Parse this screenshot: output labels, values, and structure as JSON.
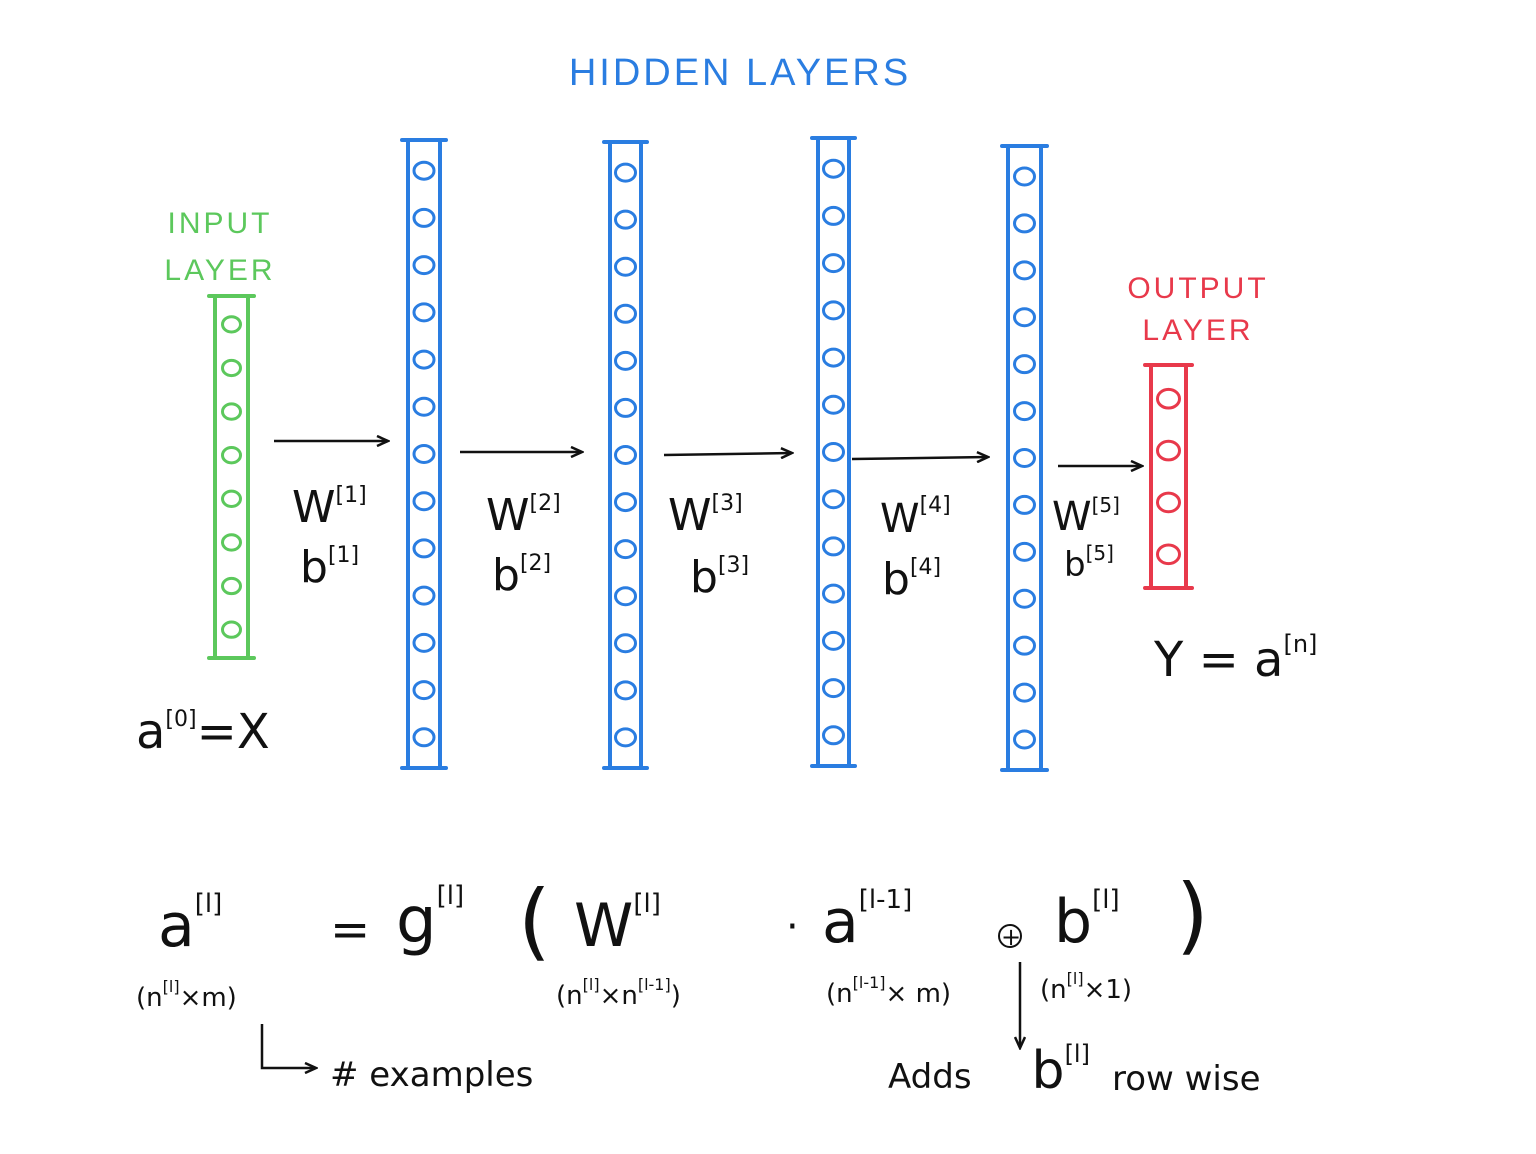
{
  "colors": {
    "hidden": "#2a7de1",
    "input": "#5cc85c",
    "output": "#e8394b",
    "ink": "#111111"
  },
  "labels": {
    "hidden_title": "HIDDEN LAYERS",
    "input_title_1": "INPUT",
    "input_title_2": "LAYER",
    "output_title_1": "OUTPUT",
    "output_title_2": "LAYER"
  },
  "layers": {
    "input_neurons": 8,
    "hidden_neurons": 13,
    "output_neurons": 4
  },
  "params": [
    {
      "w": "W",
      "w_sup": "[1]",
      "b": "b",
      "b_sup": "[1]"
    },
    {
      "w": "W",
      "w_sup": "[2]",
      "b": "b",
      "b_sup": "[2]"
    },
    {
      "w": "W",
      "w_sup": "[3]",
      "b": "b",
      "b_sup": "[3]"
    },
    {
      "w": "W",
      "w_sup": "[4]",
      "b": "b",
      "b_sup": "[4]"
    },
    {
      "w": "W",
      "w_sup": "[5]",
      "b": "b",
      "b_sup": "[5]"
    }
  ],
  "input_eq": {
    "base": "a",
    "sup": "[0]",
    "rhs": "=X"
  },
  "output_eq": {
    "lhs": "Y = a",
    "sup": "[n]"
  },
  "formula": {
    "a": "a",
    "a_sup": "[l]",
    "a_dim": "(n",
    "a_dim_sup": "[l]",
    "a_dim_rest": "×m)",
    "eq": "=",
    "g": "g",
    "g_sup": "[l]",
    "lparen": "(",
    "rparen": ")",
    "w": "W",
    "w_sup": "[l]",
    "w_dim": "(n",
    "w_dim_sup": "[l]",
    "w_dim_mid": "×n",
    "w_dim_sup2": "[l-1]",
    "w_dim_end": ")",
    "dot": "·",
    "a2": "a",
    "a2_sup": "[l-1]",
    "a2_dim": "(n",
    "a2_dim_sup": "[l-1]",
    "a2_dim_rest": "× m)",
    "plus": "+",
    "b": "b",
    "b_sup": "[l]",
    "b_dim": "(n",
    "b_dim_sup": "[l]",
    "b_dim_rest": "×1)"
  },
  "notes": {
    "examples": "# examples",
    "adds": "Adds",
    "adds_b": "b",
    "adds_b_sup": "[l]",
    "row_wise": "row wise"
  }
}
